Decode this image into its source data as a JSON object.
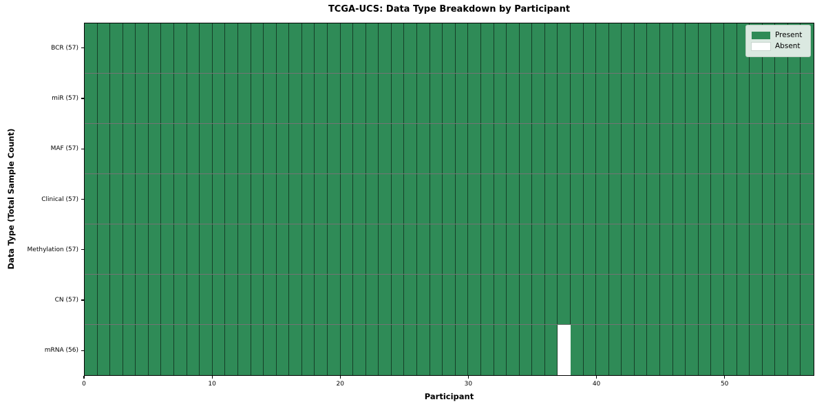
{
  "title": "TCGA-UCS: Data Type Breakdown by Participant",
  "axes": {
    "x_label": "Participant",
    "y_label": "Data Type (Total Sample Count)"
  },
  "legend": {
    "items": [
      {
        "label": "Present",
        "color": "#2f8b57"
      },
      {
        "label": "Absent",
        "color": "#ffffff"
      }
    ]
  },
  "colors": {
    "present": "#2f8b57",
    "absent": "#ffffff",
    "grid_line": "rgba(0,0,0,0.55)",
    "axis": "#000000",
    "legend_bg": "#dbe9e1"
  },
  "chart_data": {
    "type": "heatmap",
    "title": "TCGA-UCS: Data Type Breakdown by Participant",
    "xlabel": "Participant",
    "ylabel": "Data Type (Total Sample Count)",
    "n_participants": 57,
    "x_range": [
      0,
      57
    ],
    "x_ticks": [
      0,
      10,
      20,
      30,
      40,
      50
    ],
    "legend": [
      "Present",
      "Absent"
    ],
    "legend_position": "upper right",
    "grid": true,
    "rows": [
      {
        "label": "BCR (57)",
        "data_type": "BCR",
        "present_count": 57,
        "absent_participants": []
      },
      {
        "label": "miR (57)",
        "data_type": "miR",
        "present_count": 57,
        "absent_participants": []
      },
      {
        "label": "MAF (57)",
        "data_type": "MAF",
        "present_count": 57,
        "absent_participants": []
      },
      {
        "label": "Clinical (57)",
        "data_type": "Clinical",
        "present_count": 57,
        "absent_participants": []
      },
      {
        "label": "Methylation (57)",
        "data_type": "Methylation",
        "present_count": 57,
        "absent_participants": []
      },
      {
        "label": "CN (57)",
        "data_type": "CN",
        "present_count": 57,
        "absent_participants": []
      },
      {
        "label": "mRNA (56)",
        "data_type": "mRNA",
        "present_count": 56,
        "absent_participants": [
          37
        ]
      }
    ]
  }
}
